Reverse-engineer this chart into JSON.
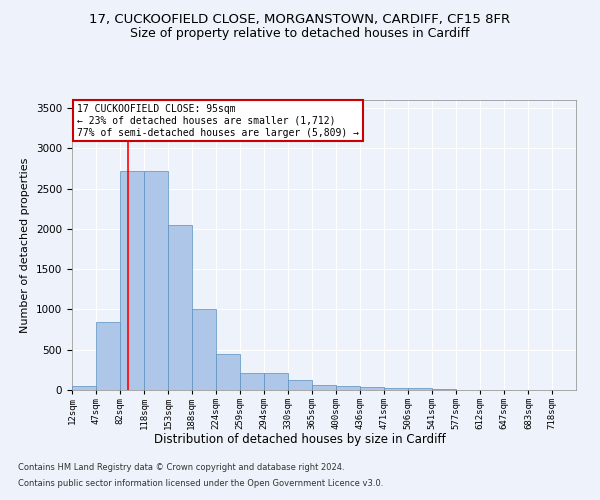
{
  "title_line1": "17, CUCKOOFIELD CLOSE, MORGANSTOWN, CARDIFF, CF15 8FR",
  "title_line2": "Size of property relative to detached houses in Cardiff",
  "xlabel": "Distribution of detached houses by size in Cardiff",
  "ylabel": "Number of detached properties",
  "bin_labels": [
    "12sqm",
    "47sqm",
    "82sqm",
    "118sqm",
    "153sqm",
    "188sqm",
    "224sqm",
    "259sqm",
    "294sqm",
    "330sqm",
    "365sqm",
    "400sqm",
    "436sqm",
    "471sqm",
    "506sqm",
    "541sqm",
    "577sqm",
    "612sqm",
    "647sqm",
    "683sqm",
    "718sqm"
  ],
  "bar_values": [
    55,
    850,
    2720,
    2720,
    2050,
    1000,
    450,
    215,
    210,
    130,
    60,
    55,
    40,
    30,
    20,
    10,
    5,
    3,
    2,
    1,
    0
  ],
  "bin_edges": [
    12,
    47,
    82,
    118,
    153,
    188,
    224,
    259,
    294,
    330,
    365,
    400,
    436,
    471,
    506,
    541,
    577,
    612,
    647,
    683,
    718,
    753
  ],
  "bar_color": "#aec6e8",
  "bar_edge_color": "#5a8fc0",
  "red_line_x": 95,
  "annotation_text": "17 CUCKOOFIELD CLOSE: 95sqm\n← 23% of detached houses are smaller (1,712)\n77% of semi-detached houses are larger (5,809) →",
  "annotation_box_color": "#ffffff",
  "annotation_box_edge": "#cc0000",
  "footnote1": "Contains HM Land Registry data © Crown copyright and database right 2024.",
  "footnote2": "Contains public sector information licensed under the Open Government Licence v3.0.",
  "ylim": [
    0,
    3600
  ],
  "background_color": "#eef2fa",
  "grid_color": "#ffffff",
  "title1_fontsize": 9.5,
  "title2_fontsize": 9,
  "xlabel_fontsize": 8.5,
  "ylabel_fontsize": 8
}
